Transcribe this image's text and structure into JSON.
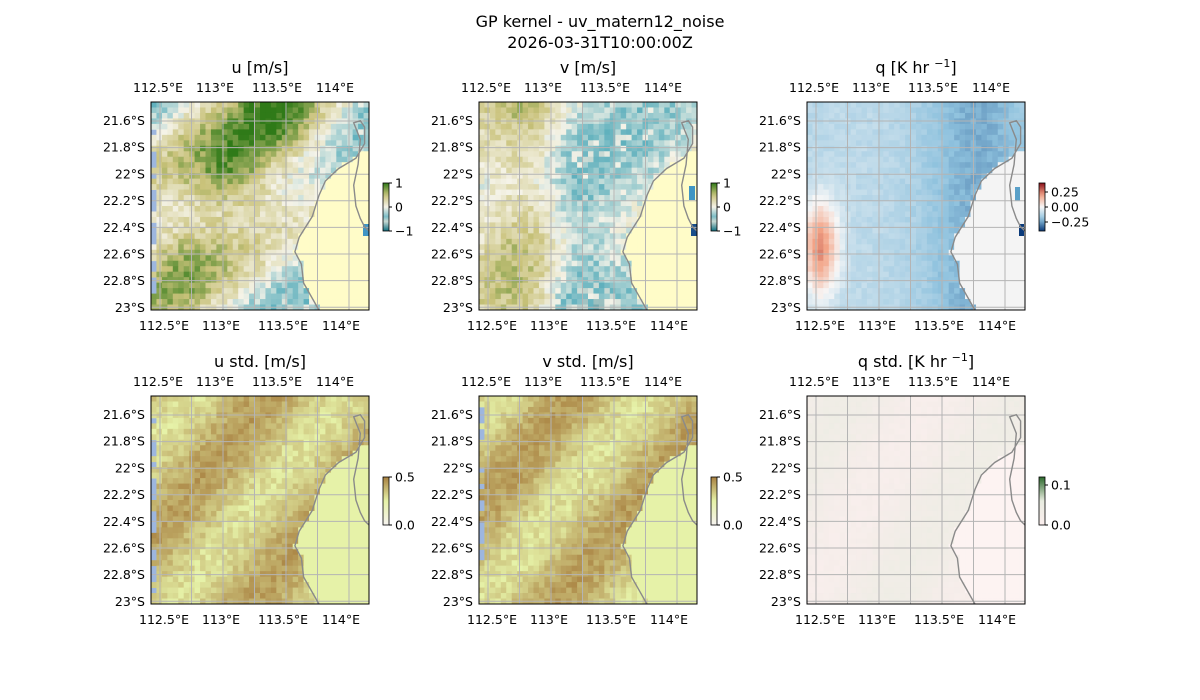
{
  "figure": {
    "title_line1": "GP kernel - uv_matern12_noise",
    "title_line2": "2026-03-31T10:00:00Z"
  },
  "colors": {
    "land": "#fffcc8",
    "sea_edge": "#9db6df",
    "grid": "#b4b4b4",
    "coast": "#8a8a8a",
    "tarn_low": "#0f6f80",
    "tarn_mid": "#f5f3e8",
    "tarn_high": "#2f7a18",
    "std_high": "#c09a4e",
    "std_low": "#e6f2a8",
    "rdbu_neg": "#0a3a7a",
    "rdbu_pos": "#8a0f1a"
  },
  "chart_data": [
    {
      "type": "heatmap",
      "title": "u [m/s]",
      "colormap": "tarn",
      "lon_ticks": [
        "112.5°E",
        "113°E",
        "113.5°E",
        "114°E"
      ],
      "lat_ticks": [
        "21.6°S",
        "21.8°S",
        "22°S",
        "22.2°S",
        "22.4°S",
        "22.6°S",
        "22.8°S",
        "23°S"
      ],
      "colorbar_ticks": [
        {
          "label": "1",
          "value": 1
        },
        {
          "label": "0",
          "value": 0
        },
        {
          "label": "−1",
          "value": -1
        }
      ],
      "value_range": [
        -1,
        1
      ],
      "xlim": [
        112.45,
        114.2
      ],
      "ylim": [
        -23.0,
        -21.47
      ],
      "grid": true
    },
    {
      "type": "heatmap",
      "title": "v [m/s]",
      "colormap": "tarn",
      "lon_ticks": [
        "112.5°E",
        "113°E",
        "113.5°E",
        "114°E"
      ],
      "lat_ticks": [
        "21.6°S",
        "21.8°S",
        "22°S",
        "22.2°S",
        "22.4°S",
        "22.6°S",
        "22.8°S",
        "23°S"
      ],
      "colorbar_ticks": [
        {
          "label": "1",
          "value": 1
        },
        {
          "label": "0",
          "value": 0
        },
        {
          "label": "−1",
          "value": -1
        }
      ],
      "value_range": [
        -1,
        1
      ],
      "xlim": [
        112.45,
        114.2
      ],
      "ylim": [
        -23.0,
        -21.47
      ],
      "grid": true
    },
    {
      "type": "heatmap",
      "title": "q [K hr ",
      "title_sup": "−1",
      "title_end": "]",
      "colormap": "RdBu_r",
      "lon_ticks": [
        "112.5°E",
        "113°E",
        "113.5°E",
        "114°E"
      ],
      "lat_ticks": [
        "21.6°S",
        "21.8°S",
        "22°S",
        "22.2°S",
        "22.4°S",
        "22.6°S",
        "22.8°S",
        "23°S"
      ],
      "colorbar_ticks": [
        {
          "label": "0.25",
          "value": 0.25
        },
        {
          "label": "0.00",
          "value": 0
        },
        {
          "label": "−0.25",
          "value": -0.25
        }
      ],
      "value_range": [
        -0.4,
        0.4
      ],
      "xlim": [
        112.45,
        114.2
      ],
      "ylim": [
        -23.0,
        -21.47
      ],
      "grid": true
    },
    {
      "type": "heatmap",
      "title": "u std. [m/s]",
      "colormap": "pink-yellow-brown",
      "lon_ticks": [
        "112.5°E",
        "113°E",
        "113.5°E",
        "114°E"
      ],
      "lat_ticks": [
        "21.6°S",
        "21.8°S",
        "22°S",
        "22.2°S",
        "22.4°S",
        "22.6°S",
        "22.8°S",
        "23°S"
      ],
      "colorbar_ticks": [
        {
          "label": "0.5",
          "value": 0.5
        },
        {
          "label": "0.0",
          "value": 0
        }
      ],
      "value_range": [
        0,
        0.5
      ],
      "xlim": [
        112.45,
        114.2
      ],
      "ylim": [
        -23.0,
        -21.47
      ],
      "grid": true
    },
    {
      "type": "heatmap",
      "title": "v std. [m/s]",
      "colormap": "pink-yellow-brown",
      "lon_ticks": [
        "112.5°E",
        "113°E",
        "113.5°E",
        "114°E"
      ],
      "lat_ticks": [
        "21.6°S",
        "21.8°S",
        "22°S",
        "22.2°S",
        "22.4°S",
        "22.6°S",
        "22.8°S",
        "23°S"
      ],
      "colorbar_ticks": [
        {
          "label": "0.5",
          "value": 0.5
        },
        {
          "label": "0.0",
          "value": 0
        }
      ],
      "value_range": [
        0,
        0.5
      ],
      "xlim": [
        112.45,
        114.2
      ],
      "ylim": [
        -23.0,
        -21.47
      ],
      "grid": true
    },
    {
      "type": "heatmap",
      "title": "q std. [K hr ",
      "title_sup": "−1",
      "title_end": "]",
      "colormap": "pink-green",
      "lon_ticks": [
        "112.5°E",
        "113°E",
        "113.5°E",
        "114°E"
      ],
      "lat_ticks": [
        "21.6°S",
        "21.8°S",
        "22°S",
        "22.2°S",
        "22.4°S",
        "22.6°S",
        "22.8°S",
        "23°S"
      ],
      "colorbar_ticks": [
        {
          "label": "0.1",
          "value": 0.1
        },
        {
          "label": "0.0",
          "value": 0
        }
      ],
      "value_range": [
        0,
        0.12
      ],
      "xlim": [
        112.45,
        114.2
      ],
      "ylim": [
        -23.0,
        -21.47
      ],
      "grid": true
    }
  ]
}
